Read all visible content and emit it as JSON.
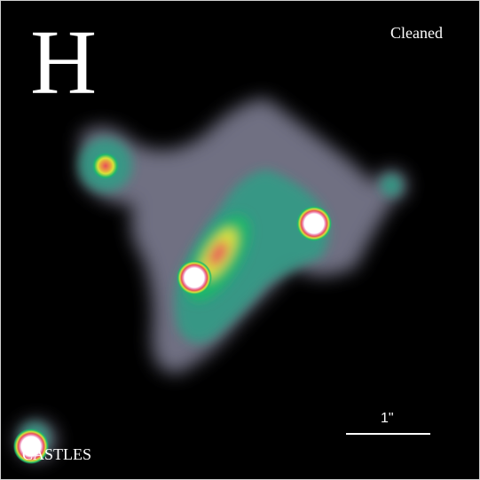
{
  "image": {
    "band": "H",
    "processing": "Cleaned",
    "credit": "CASTLES",
    "scale": "1\""
  },
  "colors": {
    "background": "#000000",
    "halo": "#7a7a8c",
    "faint": "#5b8f9a",
    "mid": "#1fb86a",
    "bright": "#d8e23a",
    "peak": "#e8505a",
    "core": "#ffffff",
    "text": "#ffffff"
  }
}
